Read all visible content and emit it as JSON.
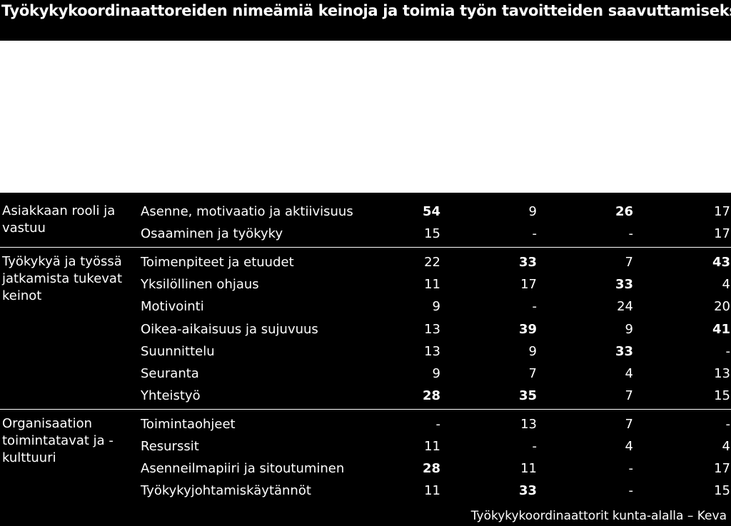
{
  "title": "Työkykykoordinaattoreiden nimeämiä keinoja ja toimia työn tavoitteiden saavuttamiseksi.",
  "source": "Työkykykoordinaattorit kunta-alalla – Keva",
  "chart_data": {
    "type": "table",
    "groups": [
      {
        "label": "Asiakkaan rooli ja vastuu",
        "rows": [
          {
            "name": "Asenne, motivaatio ja aktiivisuus",
            "values": [
              "54",
              "9",
              "26",
              "17"
            ],
            "bold": [
              true,
              false,
              true,
              false
            ]
          },
          {
            "name": "Osaaminen ja työkyky",
            "values": [
              "15",
              "-",
              "-",
              "17"
            ],
            "bold": [
              false,
              false,
              false,
              false
            ]
          }
        ]
      },
      {
        "label": "Työkykyä ja työssä jatkamista tukevat keinot",
        "rows": [
          {
            "name": "Toimenpiteet ja etuudet",
            "values": [
              "22",
              "33",
              "7",
              "43"
            ],
            "bold": [
              false,
              true,
              false,
              true
            ]
          },
          {
            "name": "Yksilöllinen ohjaus",
            "values": [
              "11",
              "17",
              "33",
              "4"
            ],
            "bold": [
              false,
              false,
              true,
              false
            ]
          },
          {
            "name": "Motivointi",
            "values": [
              "9",
              "-",
              "24",
              "20"
            ],
            "bold": [
              false,
              false,
              false,
              false
            ]
          },
          {
            "name": "Oikea-aikaisuus ja sujuvuus",
            "values": [
              "13",
              "39",
              "9",
              "41"
            ],
            "bold": [
              false,
              true,
              false,
              true
            ]
          },
          {
            "name": "Suunnittelu",
            "values": [
              "13",
              "9",
              "33",
              "-"
            ],
            "bold": [
              false,
              false,
              true,
              false
            ]
          },
          {
            "name": "Seuranta",
            "values": [
              "9",
              "7",
              "4",
              "13"
            ],
            "bold": [
              false,
              false,
              false,
              false
            ]
          },
          {
            "name": "Yhteistyö",
            "values": [
              "28",
              "35",
              "7",
              "15"
            ],
            "bold": [
              true,
              true,
              false,
              false
            ]
          }
        ]
      },
      {
        "label": "Organisaation toimintatavat ja -kulttuuri",
        "rows": [
          {
            "name": "Toimintaohjeet",
            "values": [
              "-",
              "13",
              "7",
              "-"
            ],
            "bold": [
              false,
              false,
              false,
              false
            ]
          },
          {
            "name": "Resurssit",
            "values": [
              "11",
              "-",
              "4",
              "4"
            ],
            "bold": [
              false,
              false,
              false,
              false
            ]
          },
          {
            "name": "Asenneilmapiiri ja sitoutuminen",
            "values": [
              "28",
              "11",
              "-",
              "17"
            ],
            "bold": [
              true,
              false,
              false,
              false
            ]
          },
          {
            "name": "Työkykyjohtamiskäytännöt",
            "values": [
              "11",
              "33",
              "-",
              "15"
            ],
            "bold": [
              false,
              true,
              false,
              false
            ]
          }
        ]
      }
    ]
  }
}
